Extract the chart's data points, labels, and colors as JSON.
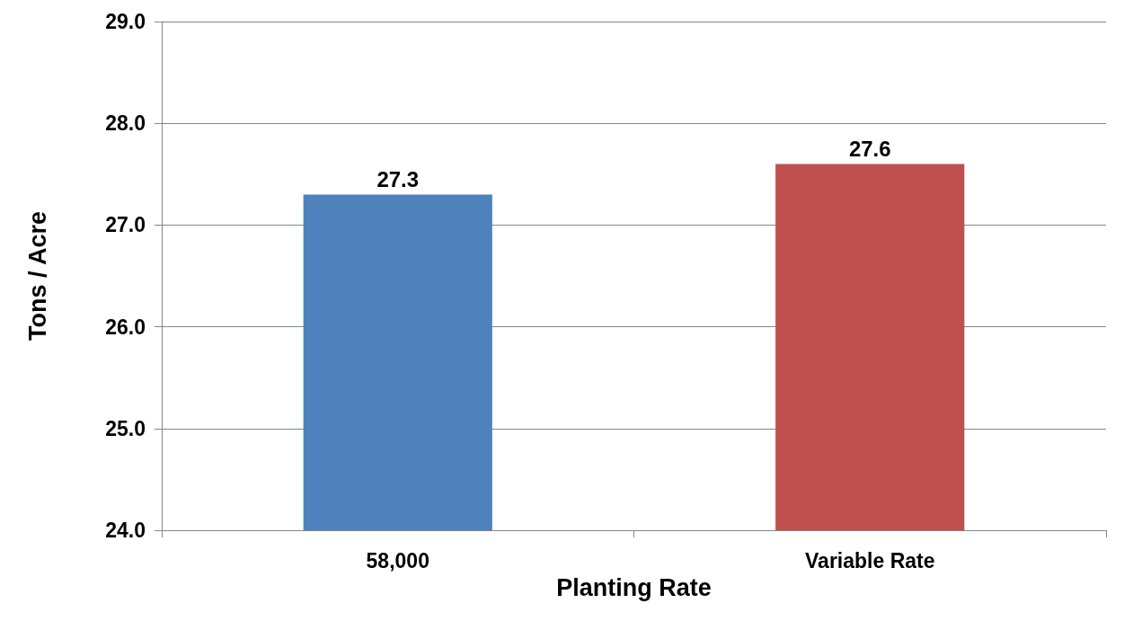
{
  "chart_data": {
    "type": "bar",
    "xlabel": "Planting Rate",
    "ylabel": "Tons / Acre",
    "categories": [
      "58,000",
      "Variable Rate"
    ],
    "values": [
      27.3,
      27.6
    ],
    "colors": [
      "#4f81bd",
      "#c0504d"
    ],
    "ylim": [
      24,
      29
    ],
    "yticks": [
      {
        "value": 24,
        "label": "24.0"
      },
      {
        "value": 25,
        "label": "25.0"
      },
      {
        "value": 26,
        "label": "26.0"
      },
      {
        "value": 27,
        "label": "27.0"
      },
      {
        "value": 28,
        "label": "28.0"
      },
      {
        "value": 29,
        "label": "29.0"
      }
    ],
    "grid": "y",
    "data_labels": true
  }
}
